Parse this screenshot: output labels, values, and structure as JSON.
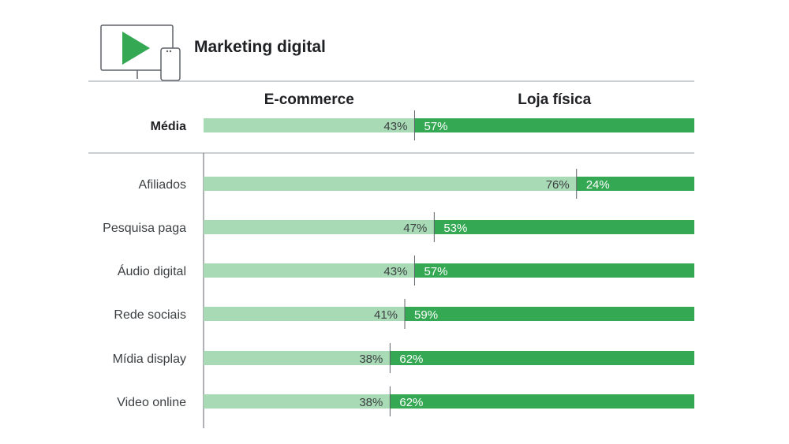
{
  "title": "Marketing digital",
  "colors": {
    "light": "#a8dab5",
    "dark": "#34a853",
    "text_dark": "#3c4043",
    "text_on_dark": "#ffffff",
    "rule": "#9aa0a6",
    "icon_green": "#34a853",
    "icon_outline": "#5f6368"
  },
  "icon": "monitor-and-phone-play-icon",
  "chart_data": {
    "type": "bar",
    "stacked": true,
    "orientation": "horizontal",
    "series": [
      {
        "name": "E-commerce",
        "values": [
          43,
          76,
          47,
          43,
          41,
          38,
          38
        ]
      },
      {
        "name": "Loja física",
        "values": [
          57,
          24,
          53,
          57,
          59,
          62,
          62
        ]
      }
    ],
    "categories": [
      "Média",
      "Afiliados",
      "Pesquisa paga",
      "Áudio digital",
      "Rede sociais",
      "Mídia display",
      "Video online"
    ],
    "value_suffix": "%",
    "xlim": [
      0,
      100
    ],
    "grid": false,
    "legend": "top"
  }
}
